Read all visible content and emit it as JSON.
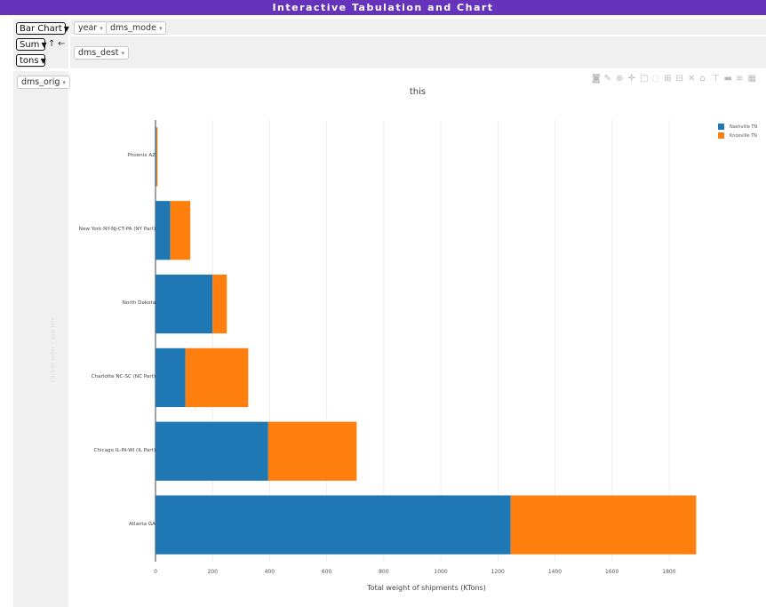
{
  "title": "Interactive Tabulation and Chart",
  "renderer_select": {
    "value": "Bar Chart",
    "caret": "▼"
  },
  "aggregator_select": {
    "value": "Sum",
    "caret": "▼"
  },
  "value_select": {
    "value": "tons",
    "caret": "▼"
  },
  "row_order_arrow": "↑",
  "col_order_arrow": "←",
  "col_attrs": [
    {
      "label": "year"
    },
    {
      "label": "dms_mode"
    }
  ],
  "dest_attr": {
    "label": "dms_dest"
  },
  "row_attr": {
    "label": "dms_orig"
  },
  "pill_triangle": "▾",
  "toolbar_icons": [
    "camera-icon",
    "pencil-icon",
    "zoom-icon",
    "pan-icon",
    "box-select-icon",
    "lasso-icon",
    "zoom-in-icon",
    "zoom-out-icon",
    "autoscale-icon",
    "reset-axes-icon",
    "spike-icon",
    "hover-closest-icon",
    "hover-compare-icon",
    "plotly-logo-icon"
  ],
  "chart_data": {
    "type": "bar",
    "orientation": "horizontal",
    "stacked": true,
    "title": "this",
    "xlabel": "Total weight of shipments (KTons)",
    "ylabel": "Click to enter Y axis title",
    "categories": [
      "Atlanta GA",
      "Chicago IL-IN-WI (IL Part)",
      "Charlotte NC-SC (NC Part)",
      "North Dakota",
      "New York NY-NJ-CT-PA (NY Part)",
      "Phoenix AZ"
    ],
    "series": [
      {
        "name": "Nashville TN",
        "color": "#1f77b4",
        "values": [
          1245,
          395,
          105,
          200,
          52,
          3
        ]
      },
      {
        "name": "Knoxville TN",
        "color": "#ff7f0e",
        "values": [
          650,
          310,
          220,
          50,
          70,
          4
        ]
      }
    ],
    "xlim": [
      0,
      1900
    ],
    "xticks": [
      0,
      200,
      400,
      600,
      800,
      1000,
      1200,
      1400,
      1600,
      1800
    ],
    "grid": true,
    "legend_position": "top-right"
  }
}
